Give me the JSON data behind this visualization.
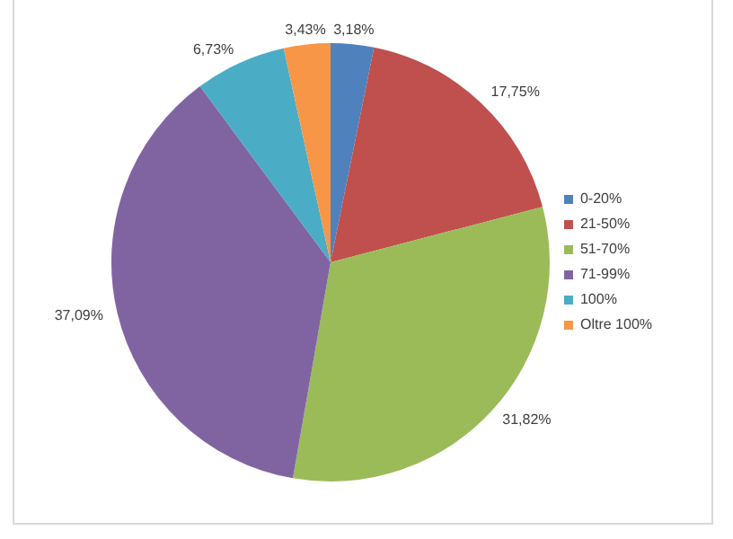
{
  "chart_data": {
    "type": "pie",
    "categories": [
      "0-20%",
      "21-50%",
      "51-70%",
      "71-99%",
      "100%",
      "Oltre 100%"
    ],
    "values": [
      3.18,
      17.75,
      31.82,
      37.09,
      6.73,
      3.43
    ],
    "colors": [
      "#4f81bd",
      "#c0504d",
      "#9bbb59",
      "#8064a2",
      "#4bacc6",
      "#f79646"
    ],
    "value_labels": [
      "3,18%",
      "17,75%",
      "31,82%",
      "37,09%",
      "6,73%",
      "3,43%"
    ],
    "legend": "right"
  }
}
